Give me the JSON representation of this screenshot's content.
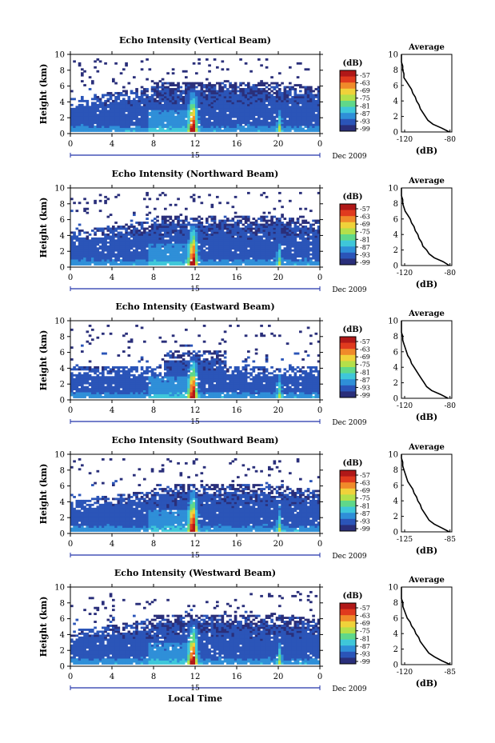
{
  "chart_data": [
    {
      "type": "heatmap",
      "title": "Echo Intensity (Vertical Beam)",
      "ylabel": "Height (km)",
      "ylim": [
        0,
        10
      ],
      "xlim": [
        0,
        24
      ],
      "x_ticks": [
        "0",
        "4",
        "8",
        "12",
        "16",
        "20",
        "0"
      ],
      "date_label": "Dec 2009",
      "day_marker": "15",
      "colorbar_unit": "(dB)",
      "colorbar_ticks": [
        "-57",
        "-63",
        "-69",
        "-75",
        "-81",
        "-87",
        "-93",
        "-99"
      ],
      "spike_hours": [
        11.8,
        20.1
      ],
      "average_profile": {
        "title": "Average",
        "xlabel": "(dB)",
        "xlim": [
          -120,
          -80
        ],
        "x_ticks": [
          "-120",
          "-80"
        ],
        "ylim": [
          0,
          10
        ],
        "height_km": [
          0,
          0.5,
          1,
          1.5,
          2,
          2.5,
          3,
          3.5,
          4,
          4.5,
          5,
          5.5,
          6,
          6.5,
          7,
          7.5,
          8,
          8.5,
          9,
          9.5,
          10
        ],
        "db": [
          -82,
          -88,
          -95,
          -99,
          -101,
          -103,
          -105,
          -106,
          -108,
          -109,
          -111,
          -112,
          -114,
          -116,
          -118,
          -118,
          -119,
          -119,
          -120,
          -120,
          -120
        ]
      }
    },
    {
      "type": "heatmap",
      "title": "Echo Intensity (Northward Beam)",
      "ylabel": "Height (km)",
      "ylim": [
        0,
        10
      ],
      "xlim": [
        0,
        24
      ],
      "x_ticks": [
        "0",
        "4",
        "8",
        "12",
        "16",
        "20",
        "0"
      ],
      "date_label": "Dec 2009",
      "day_marker": "15",
      "colorbar_unit": "(dB)",
      "colorbar_ticks": [
        "-57",
        "-63",
        "-69",
        "-75",
        "-81",
        "-87",
        "-93",
        "-99"
      ],
      "spike_hours": [
        11.8,
        20.1
      ],
      "average_profile": {
        "title": "Average",
        "xlabel": "(dB)",
        "xlim": [
          -120,
          -80
        ],
        "x_ticks": [
          "-120",
          "-80"
        ],
        "ylim": [
          0,
          10
        ],
        "height_km": [
          0,
          0.5,
          1,
          1.5,
          2,
          2.5,
          3,
          3.5,
          4,
          4.5,
          5,
          5.5,
          6,
          6.5,
          7,
          7.5,
          8,
          8.5,
          9,
          9.5,
          10
        ],
        "db": [
          -82,
          -87,
          -94,
          -98,
          -100,
          -103,
          -104,
          -106,
          -107,
          -109,
          -110,
          -112,
          -113,
          -115,
          -117,
          -118,
          -119,
          -119,
          -120,
          -120,
          -120
        ]
      }
    },
    {
      "type": "heatmap",
      "title": "Echo Intensity (Eastward Beam)",
      "ylabel": "Height (km)",
      "ylim": [
        0,
        10
      ],
      "xlim": [
        0,
        24
      ],
      "x_ticks": [
        "0",
        "4",
        "8",
        "12",
        "16",
        "20",
        "0"
      ],
      "date_label": "Dec 2009",
      "day_marker": "15",
      "colorbar_unit": "(dB)",
      "colorbar_ticks": [
        "-57",
        "-63",
        "-69",
        "-75",
        "-81",
        "-87",
        "-93",
        "-99"
      ],
      "spike_hours": [
        11.8,
        20.1
      ],
      "average_profile": {
        "title": "Average",
        "xlabel": "(dB)",
        "xlim": [
          -120,
          -80
        ],
        "x_ticks": [
          "-120",
          "-80"
        ],
        "ylim": [
          0,
          10
        ],
        "height_km": [
          0,
          0.5,
          1,
          1.5,
          2,
          2.5,
          3,
          3.5,
          4,
          4.5,
          5,
          5.5,
          6,
          6.5,
          7,
          7.5,
          8,
          8.5,
          9,
          9.5,
          10
        ],
        "db": [
          -83,
          -89,
          -96,
          -100,
          -102,
          -104,
          -106,
          -108,
          -110,
          -112,
          -113,
          -115,
          -116,
          -117,
          -118,
          -119,
          -119,
          -120,
          -120,
          -120,
          -120
        ]
      }
    },
    {
      "type": "heatmap",
      "title": "Echo Intensity (Southward Beam)",
      "ylabel": "Height (km)",
      "ylim": [
        0,
        10
      ],
      "xlim": [
        0,
        24
      ],
      "x_ticks": [
        "0",
        "4",
        "8",
        "12",
        "16",
        "20",
        "0"
      ],
      "date_label": "Dec 2009",
      "day_marker": "15",
      "colorbar_unit": "(dB)",
      "colorbar_ticks": [
        "-57",
        "-63",
        "-69",
        "-75",
        "-81",
        "-87",
        "-93",
        "-99"
      ],
      "spike_hours": [
        11.8,
        20.1
      ],
      "average_profile": {
        "title": "Average",
        "xlabel": "(dB)",
        "xlim": [
          -125,
          -85
        ],
        "x_ticks": [
          "-125",
          "-85"
        ],
        "ylim": [
          0,
          10
        ],
        "height_km": [
          0,
          0.5,
          1,
          1.5,
          2,
          2.5,
          3,
          3.5,
          4,
          4.5,
          5,
          5.5,
          6,
          6.5,
          7,
          7.5,
          8,
          8.5,
          9,
          9.5,
          10
        ],
        "db": [
          -87,
          -93,
          -99,
          -103,
          -105,
          -107,
          -109,
          -110,
          -112,
          -113,
          -115,
          -116,
          -118,
          -120,
          -121,
          -122,
          -123,
          -124,
          -124,
          -125,
          -125
        ]
      }
    },
    {
      "type": "heatmap",
      "title": "Echo Intensity (Westward Beam)",
      "ylabel": "Height (km)",
      "ylim": [
        0,
        10
      ],
      "xlim": [
        0,
        24
      ],
      "x_ticks": [
        "0",
        "4",
        "8",
        "12",
        "16",
        "20",
        "0"
      ],
      "date_label": "Dec 2009",
      "day_marker": "15",
      "xlabel": "Local Time",
      "colorbar_unit": "(dB)",
      "colorbar_ticks": [
        "-57",
        "-63",
        "-69",
        "-75",
        "-81",
        "-87",
        "-93",
        "-99"
      ],
      "spike_hours": [
        11.8,
        20.1
      ],
      "average_profile": {
        "title": "Average",
        "xlabel": "(dB)",
        "xlim": [
          -120,
          -85
        ],
        "x_ticks": [
          "-120",
          "-85"
        ],
        "ylim": [
          0,
          10
        ],
        "height_km": [
          0,
          0.5,
          1,
          1.5,
          2,
          2.5,
          3,
          3.5,
          4,
          4.5,
          5,
          5.5,
          6,
          6.5,
          7,
          7.5,
          8,
          8.5,
          9,
          9.5,
          10
        ],
        "db": [
          -86,
          -92,
          -97,
          -101,
          -103,
          -105,
          -107,
          -108,
          -110,
          -111,
          -113,
          -114,
          -116,
          -117,
          -118,
          -119,
          -119,
          -120,
          -120,
          -120,
          -120
        ]
      }
    }
  ],
  "colors": {
    "cmap": [
      "#2a2f7a",
      "#2b55b8",
      "#2f8fd8",
      "#3fc7d9",
      "#5fd88a",
      "#b4e04a",
      "#f0d23a",
      "#f08a2a",
      "#e03a1e",
      "#b01818"
    ],
    "background_echo": "#34408e"
  }
}
